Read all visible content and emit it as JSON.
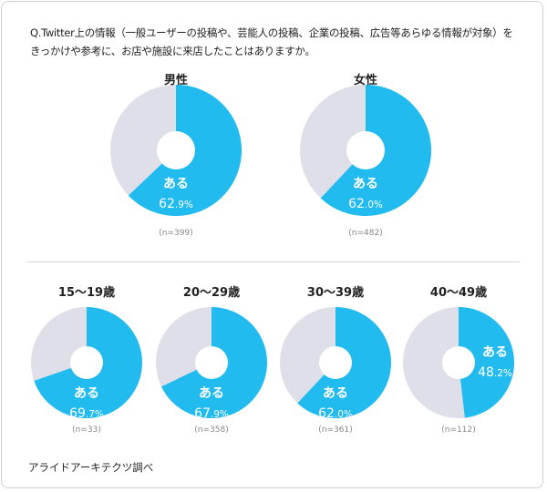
{
  "question": "Q.Twitter上の情報（一般ユーザーの投稿や、芸能人の投稿、企業の投稿、広告等あらゆる情報が対象）をきっかけや参考に、お店や施設に来店したことはありますか。",
  "source": "アライドアーキテクツ調べ",
  "colors": {
    "yes": "#22bbf0",
    "other": "#dfdfe9",
    "hole": "#ffffff"
  },
  "chart_data": [
    {
      "type": "pie",
      "title": "男性",
      "label": "ある",
      "value": 62.9,
      "n": "(n=399)"
    },
    {
      "type": "pie",
      "title": "女性",
      "label": "ある",
      "value": 62.0,
      "n": "(n=482)"
    },
    {
      "type": "pie",
      "title": "15〜19歳",
      "label": "ある",
      "value": 69.7,
      "n": "(n=33)"
    },
    {
      "type": "pie",
      "title": "20〜29歳",
      "label": "ある",
      "value": 67.9,
      "n": "(n=358)"
    },
    {
      "type": "pie",
      "title": "30〜39歳",
      "label": "ある",
      "value": 62.0,
      "n": "(n=361)"
    },
    {
      "type": "pie",
      "title": "40〜49歳",
      "label": "ある",
      "value": 48.2,
      "n": "(n=112)"
    }
  ]
}
